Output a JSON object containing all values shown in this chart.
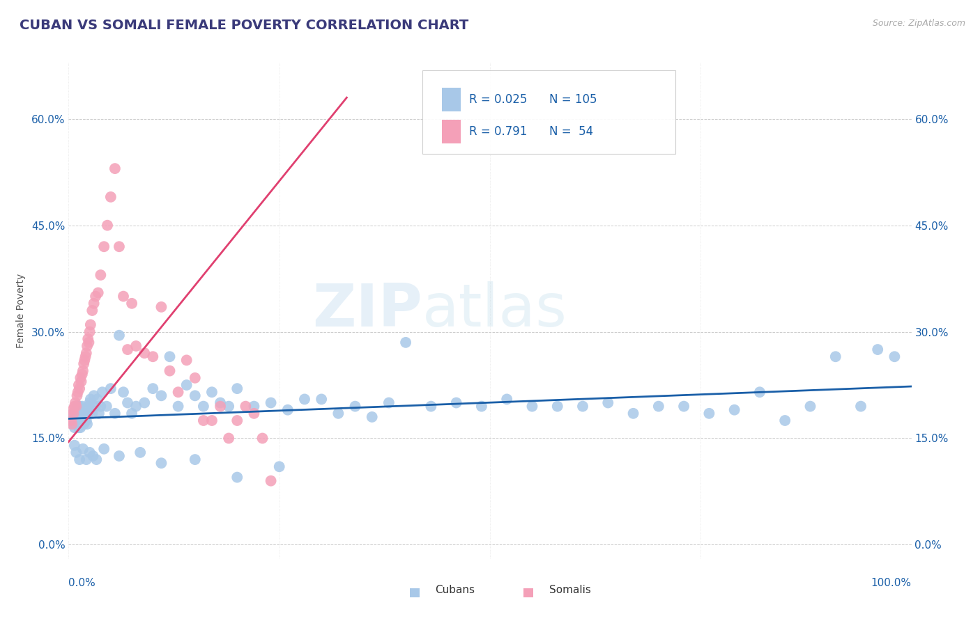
{
  "title": "CUBAN VS SOMALI FEMALE POVERTY CORRELATION CHART",
  "source_text": "Source: ZipAtlas.com",
  "ylabel": "Female Poverty",
  "xlim": [
    0.0,
    1.0
  ],
  "ylim": [
    -0.02,
    0.68
  ],
  "yticks": [
    0.0,
    0.15,
    0.3,
    0.45,
    0.6
  ],
  "ytick_labels": [
    "0.0%",
    "15.0%",
    "30.0%",
    "45.0%",
    "60.0%"
  ],
  "xticks": [
    0.0,
    0.25,
    0.5,
    0.75,
    1.0
  ],
  "xtick_labels": [
    "0.0%",
    "",
    "",
    "",
    "100.0%"
  ],
  "cuban_color": "#a8c8e8",
  "somali_color": "#f4a0b8",
  "cuban_line_color": "#1a5fa8",
  "somali_line_color": "#e04070",
  "cuban_R": 0.025,
  "cuban_N": 105,
  "somali_R": 0.791,
  "somali_N": 54,
  "title_color": "#3a3a7a",
  "title_fontsize": 14,
  "background_color": "#ffffff",
  "legend_text_color": "#1a5fa8",
  "legend_label_color": "#333333",
  "cubans_x": [
    0.003,
    0.004,
    0.005,
    0.006,
    0.007,
    0.008,
    0.009,
    0.01,
    0.01,
    0.011,
    0.011,
    0.012,
    0.012,
    0.013,
    0.013,
    0.014,
    0.014,
    0.015,
    0.015,
    0.016,
    0.016,
    0.017,
    0.018,
    0.018,
    0.019,
    0.02,
    0.021,
    0.022,
    0.023,
    0.024,
    0.025,
    0.026,
    0.027,
    0.028,
    0.03,
    0.032,
    0.034,
    0.036,
    0.038,
    0.04,
    0.045,
    0.05,
    0.055,
    0.06,
    0.065,
    0.07,
    0.075,
    0.08,
    0.09,
    0.1,
    0.11,
    0.12,
    0.13,
    0.14,
    0.15,
    0.16,
    0.17,
    0.18,
    0.19,
    0.2,
    0.22,
    0.24,
    0.26,
    0.28,
    0.3,
    0.32,
    0.34,
    0.36,
    0.38,
    0.4,
    0.43,
    0.46,
    0.49,
    0.52,
    0.55,
    0.58,
    0.61,
    0.64,
    0.67,
    0.7,
    0.73,
    0.76,
    0.79,
    0.82,
    0.85,
    0.88,
    0.91,
    0.94,
    0.96,
    0.98,
    0.007,
    0.009,
    0.013,
    0.017,
    0.021,
    0.025,
    0.029,
    0.033,
    0.042,
    0.06,
    0.085,
    0.11,
    0.15,
    0.2,
    0.25
  ],
  "cubans_y": [
    0.18,
    0.175,
    0.185,
    0.17,
    0.165,
    0.18,
    0.175,
    0.185,
    0.19,
    0.195,
    0.175,
    0.185,
    0.165,
    0.195,
    0.17,
    0.18,
    0.165,
    0.185,
    0.175,
    0.18,
    0.195,
    0.175,
    0.185,
    0.17,
    0.175,
    0.185,
    0.175,
    0.17,
    0.185,
    0.195,
    0.2,
    0.205,
    0.19,
    0.185,
    0.21,
    0.195,
    0.205,
    0.185,
    0.195,
    0.215,
    0.195,
    0.22,
    0.185,
    0.295,
    0.215,
    0.2,
    0.185,
    0.195,
    0.2,
    0.22,
    0.21,
    0.265,
    0.195,
    0.225,
    0.21,
    0.195,
    0.215,
    0.2,
    0.195,
    0.22,
    0.195,
    0.2,
    0.19,
    0.205,
    0.205,
    0.185,
    0.195,
    0.18,
    0.2,
    0.285,
    0.195,
    0.2,
    0.195,
    0.205,
    0.195,
    0.195,
    0.195,
    0.2,
    0.185,
    0.195,
    0.195,
    0.185,
    0.19,
    0.215,
    0.175,
    0.195,
    0.265,
    0.195,
    0.275,
    0.265,
    0.14,
    0.13,
    0.12,
    0.135,
    0.12,
    0.13,
    0.125,
    0.12,
    0.135,
    0.125,
    0.13,
    0.115,
    0.12,
    0.095,
    0.11
  ],
  "somalis_x": [
    0.003,
    0.004,
    0.005,
    0.006,
    0.007,
    0.008,
    0.009,
    0.01,
    0.011,
    0.012,
    0.013,
    0.014,
    0.015,
    0.016,
    0.017,
    0.018,
    0.019,
    0.02,
    0.021,
    0.022,
    0.023,
    0.024,
    0.025,
    0.026,
    0.028,
    0.03,
    0.032,
    0.035,
    0.038,
    0.042,
    0.046,
    0.05,
    0.055,
    0.06,
    0.065,
    0.07,
    0.075,
    0.08,
    0.09,
    0.1,
    0.11,
    0.12,
    0.13,
    0.14,
    0.15,
    0.16,
    0.17,
    0.18,
    0.19,
    0.2,
    0.21,
    0.22,
    0.23,
    0.24
  ],
  "somalis_y": [
    0.175,
    0.17,
    0.19,
    0.185,
    0.195,
    0.2,
    0.195,
    0.21,
    0.215,
    0.225,
    0.22,
    0.235,
    0.23,
    0.24,
    0.245,
    0.255,
    0.26,
    0.265,
    0.27,
    0.28,
    0.29,
    0.285,
    0.3,
    0.31,
    0.33,
    0.34,
    0.35,
    0.355,
    0.38,
    0.42,
    0.45,
    0.49,
    0.53,
    0.42,
    0.35,
    0.275,
    0.34,
    0.28,
    0.27,
    0.265,
    0.335,
    0.245,
    0.215,
    0.26,
    0.235,
    0.175,
    0.175,
    0.195,
    0.15,
    0.175,
    0.195,
    0.185,
    0.15,
    0.09
  ],
  "somali_line_start_x": 0.0,
  "somali_line_end_x": 0.33,
  "somali_line_start_y": 0.145,
  "somali_line_end_y": 0.63
}
